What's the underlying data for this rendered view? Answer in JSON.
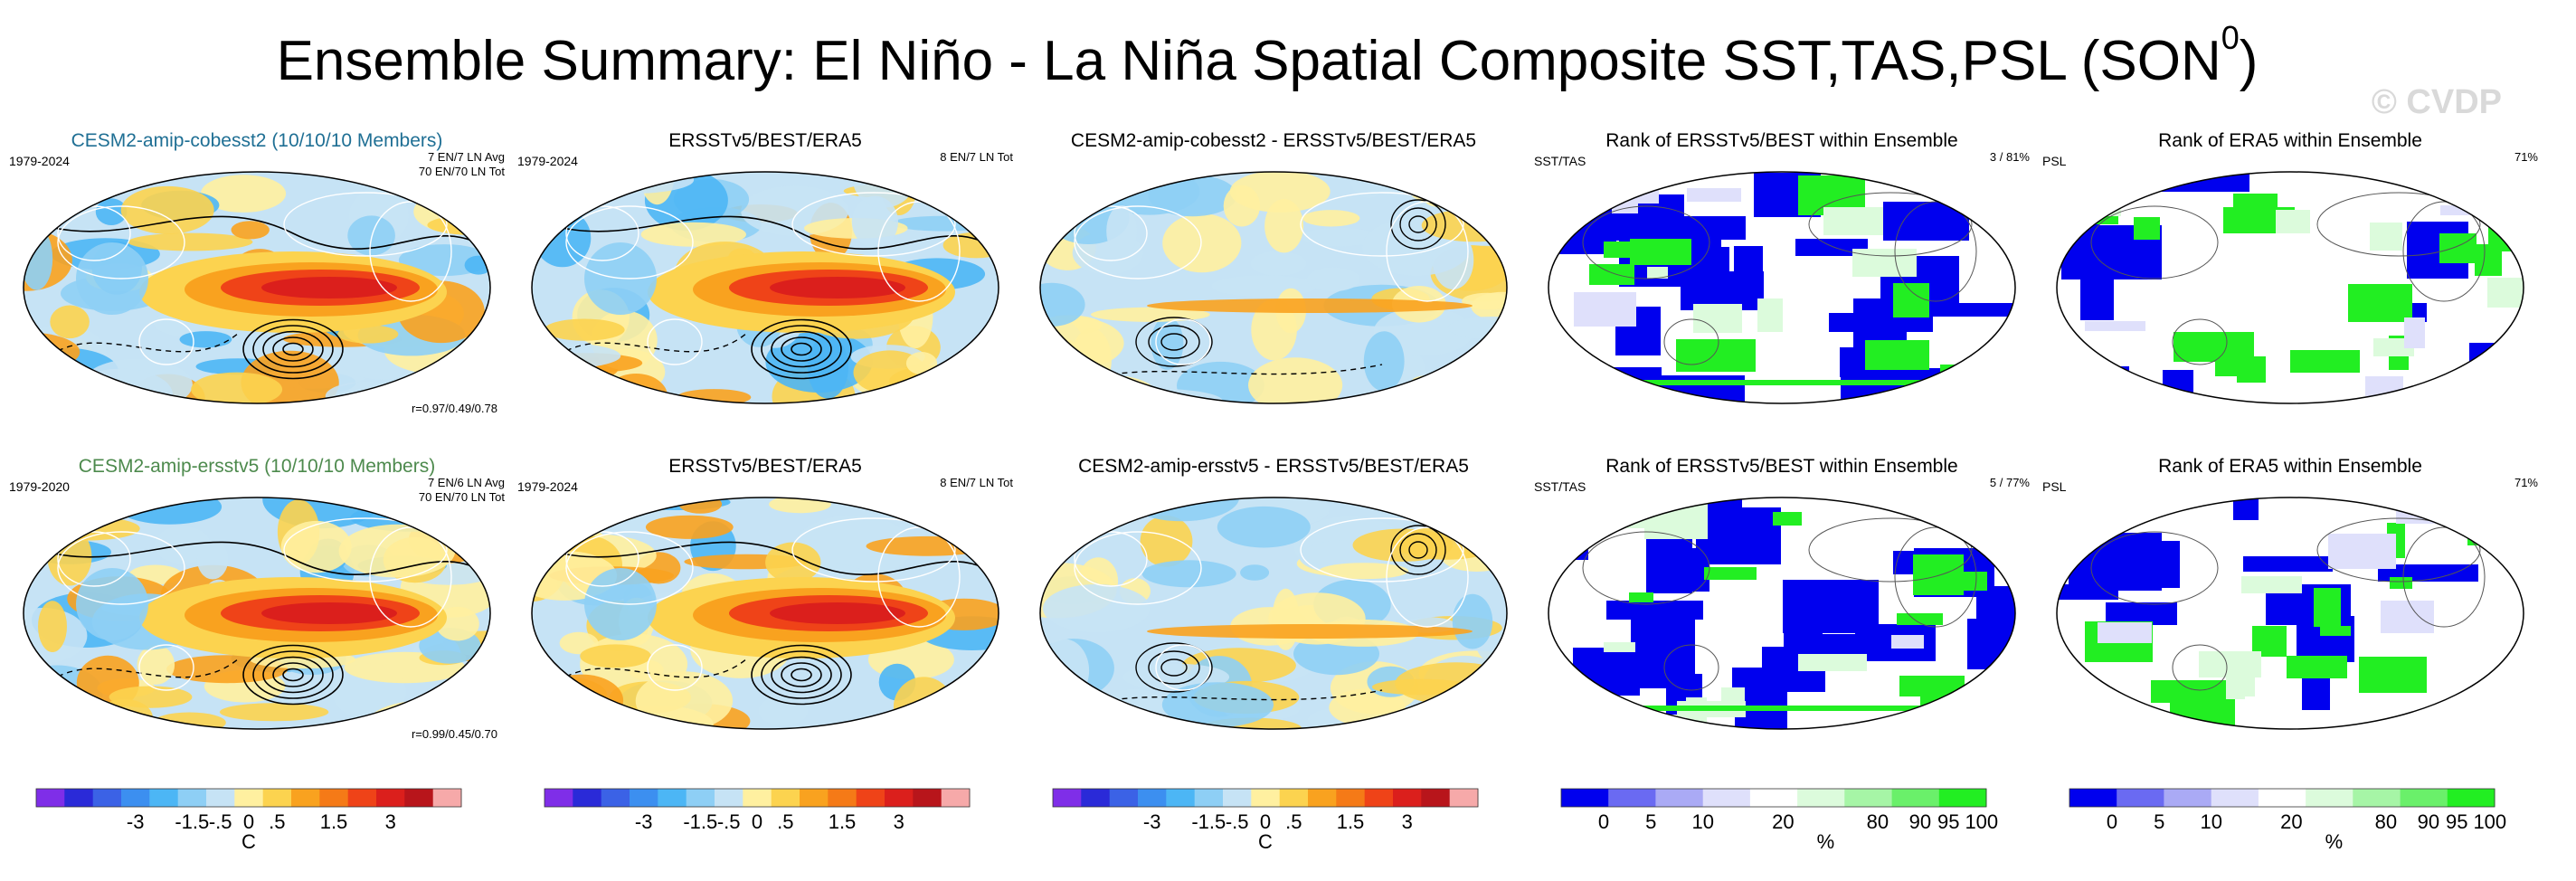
{
  "title": "Ensemble Summary: El Niño - La Niña Spatial Composite SST,TAS,PSL (SON",
  "title_sup": "0",
  "title_close": ")",
  "watermark": "© CVDP",
  "colors": {
    "title_cobesst": "#1f6f94",
    "title_ersst": "#4d8a4d",
    "blue_rank": "#0000ee",
    "green_rank": "#22ee22"
  },
  "panels": [
    {
      "title": "CESM2-amip-cobesst2 (10/10/10 Members)",
      "period": "1979-2024",
      "info": "7 EN/7 LN Avg\n70 EN/70 LN Tot",
      "stats": "r=0.97/0.49/0.78",
      "kind": "composite",
      "title_color": "title_cobesst"
    },
    {
      "title": "ERSSTv5/BEST/ERA5",
      "period": "1979-2024",
      "info": "8 EN/7 LN Tot",
      "stats": "",
      "kind": "composite"
    },
    {
      "title": "CESM2-amip-cobesst2 - ERSSTv5/BEST/ERA5",
      "period": "",
      "info": "",
      "stats": "",
      "kind": "diff"
    },
    {
      "title": "Rank of ERSSTv5/BEST within Ensemble",
      "period": "SST/TAS",
      "info": "3 / 81%",
      "stats": "",
      "kind": "rank"
    },
    {
      "title": "Rank of ERA5 within Ensemble",
      "period": "PSL",
      "info": "71%",
      "stats": "",
      "kind": "rank2"
    },
    {
      "title": "CESM2-amip-ersstv5 (10/10/10 Members)",
      "period": "1979-2020",
      "info": "7 EN/6 LN Avg\n70 EN/70 LN Tot",
      "stats": "r=0.99/0.45/0.70",
      "kind": "composite",
      "title_color": "title_ersst"
    },
    {
      "title": "ERSSTv5/BEST/ERA5",
      "period": "1979-2024",
      "info": "8 EN/7 LN Tot",
      "stats": "",
      "kind": "composite"
    },
    {
      "title": "CESM2-amip-ersstv5 - ERSSTv5/BEST/ERA5",
      "period": "",
      "info": "",
      "stats": "",
      "kind": "diff"
    },
    {
      "title": "Rank of ERSSTv5/BEST within Ensemble",
      "period": "SST/TAS",
      "info": "5 / 77%",
      "stats": "",
      "kind": "rank"
    },
    {
      "title": "Rank of ERA5 within Ensemble",
      "period": "PSL",
      "info": "71%",
      "stats": "",
      "kind": "rank2"
    }
  ],
  "colorbars": [
    {
      "kind": "temp",
      "labels": [
        "-3",
        "-1.5",
        "-.5",
        "0",
        ".5",
        "1.5",
        "3"
      ],
      "unit": "C"
    },
    {
      "kind": "temp",
      "labels": [
        "-3",
        "-1.5",
        "-.5",
        "0",
        ".5",
        "1.5",
        "3"
      ],
      "unit": ""
    },
    {
      "kind": "temp",
      "labels": [
        "-3",
        "-1.5",
        "-.5",
        "0",
        ".5",
        "1.5",
        "3"
      ],
      "unit": "C"
    },
    {
      "kind": "rank",
      "labels": [
        "0",
        "5",
        "10",
        "20",
        "80",
        "90",
        "95",
        "100"
      ],
      "unit": "%"
    },
    {
      "kind": "rank",
      "labels": [
        "0",
        "5",
        "10",
        "20",
        "80",
        "90",
        "95",
        "100"
      ],
      "unit": "%"
    }
  ],
  "chart_data": {
    "type": "heatmap",
    "temp_colors": [
      "#7f2ee8",
      "#2a2ad8",
      "#3b62e6",
      "#3c8ff0",
      "#4cb6f5",
      "#8ecff5",
      "#c6e3f5",
      "#fff0a0",
      "#fcd34f",
      "#f9a21f",
      "#f57a17",
      "#ef4318",
      "#db1f1c",
      "#b8151b",
      "#f6a9a9"
    ],
    "rank_colors": [
      "#0000ee",
      "#6a6af2",
      "#aaaaf5",
      "#dfe0fb",
      "#ffffff",
      "#dcfbdc",
      "#a6f5a6",
      "#6af06a",
      "#22ee22"
    ],
    "temp_levels": [
      -3,
      -1.5,
      -0.5,
      0,
      0.5,
      1.5,
      3
    ],
    "rank_levels": [
      0,
      5,
      10,
      20,
      80,
      90,
      95,
      100
    ]
  }
}
